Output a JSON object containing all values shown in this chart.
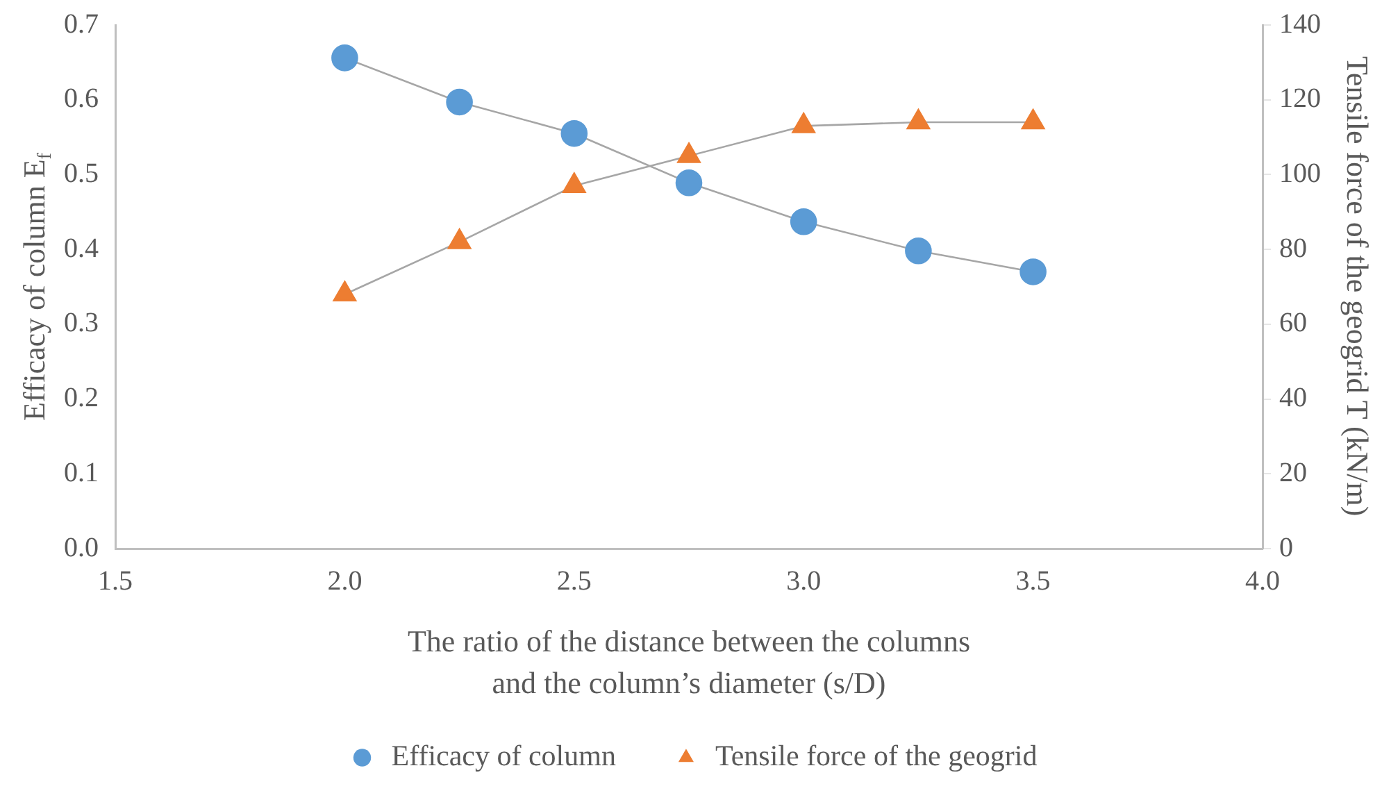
{
  "chart_data": {
    "type": "line",
    "xlabel": "The ratio of the distance between the columns\nand the column’s diameter (s/D)",
    "ylabel": "Efficacy of column E$_{f}$",
    "y2label": "Tensile force of the geogrid T (kN/m)",
    "x": [
      2.0,
      2.25,
      2.5,
      2.75,
      3.0,
      3.25,
      3.5
    ],
    "series": [
      {
        "name": "Efficacy of column",
        "color": "#5b9bd5",
        "marker": "circle",
        "values": [
          0.656,
          0.597,
          0.555,
          0.489,
          0.437,
          0.398,
          0.37
        ]
      },
      {
        "name": "Tensile force of the geogrid",
        "color": "#ed7d31",
        "marker": "triangle",
        "axis": "y2",
        "values": [
          68,
          82,
          97,
          105,
          113,
          114,
          114
        ]
      }
    ],
    "xlim": [
      1.5,
      4.0
    ],
    "xticks": [
      1.5,
      {
        "value": 2.0,
        "label": "2.0"
      },
      2.5,
      {
        "value": 3.0,
        "label": "3.0"
      },
      3.5,
      {
        "value": 4.0,
        "label": "4.0"
      }
    ],
    "ylim": [
      0,
      0.7
    ],
    "yticks": [
      {
        "value": 0,
        "label": "0.0"
      },
      0.1,
      0.2,
      0.3,
      0.4,
      0.5,
      0.6,
      0.7
    ],
    "y2lim": [
      0,
      140
    ],
    "y2ticks": [
      0,
      20,
      40,
      60,
      80,
      100,
      120,
      140
    ],
    "grid": false,
    "legend": "bottom",
    "line_style": "solid"
  }
}
